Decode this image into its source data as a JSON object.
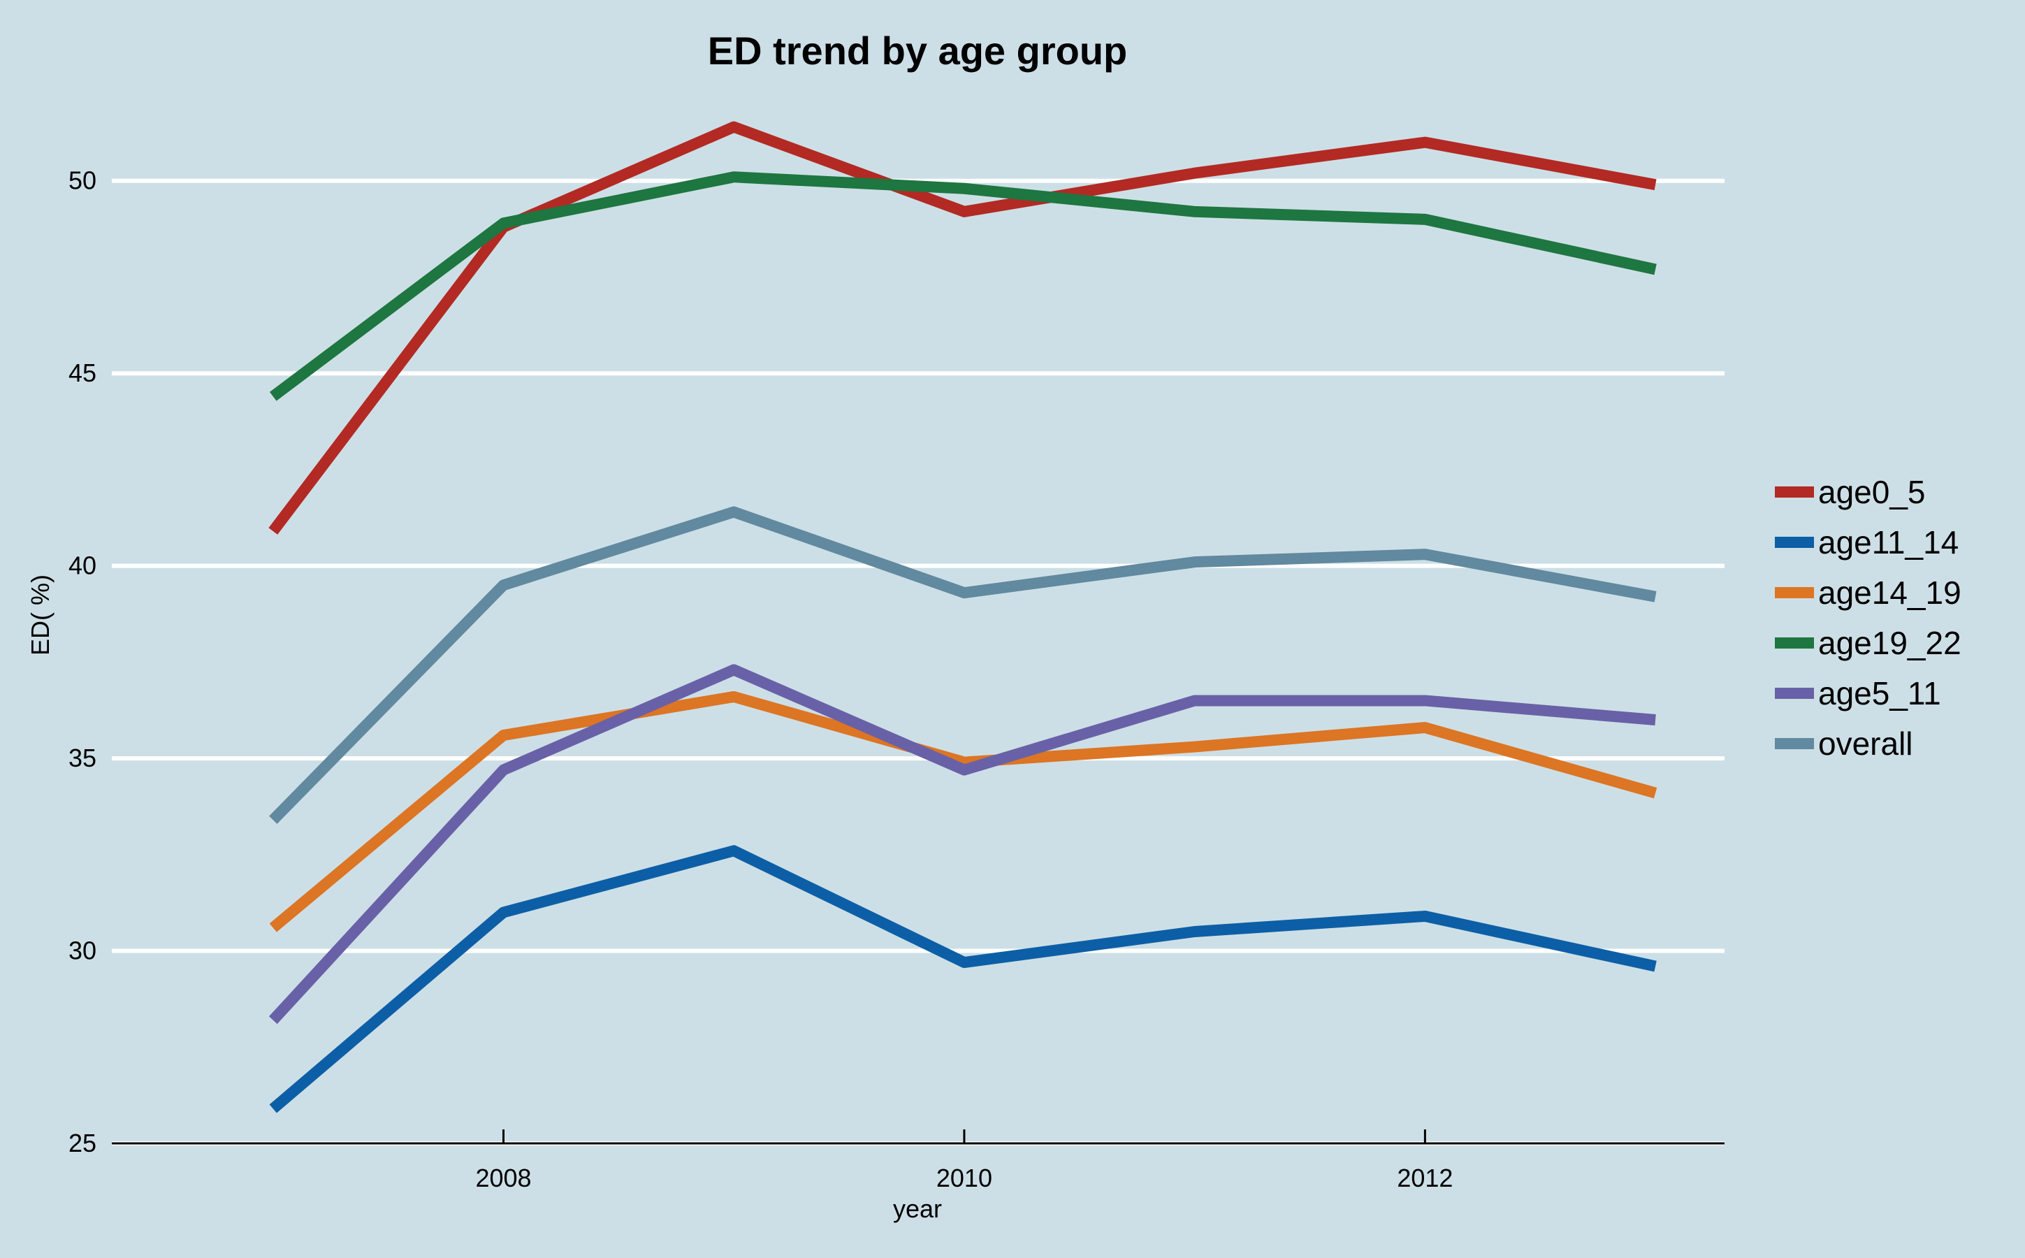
{
  "chart_data": {
    "type": "line",
    "title": "ED trend by age group",
    "xlabel": "year",
    "ylabel": "ED( %)",
    "x": [
      2007,
      2008,
      2009,
      2010,
      2011,
      2012,
      2013
    ],
    "xlim": [
      2006.3,
      2013.3
    ],
    "ylim": [
      25,
      52.7
    ],
    "xticks": [
      2008,
      2010,
      2012
    ],
    "yticks": [
      25,
      30,
      35,
      40,
      45,
      50
    ],
    "xtick_labels": [
      "2008",
      "2010",
      "2012"
    ],
    "ytick_labels": [
      "25",
      "30",
      "35",
      "40",
      "45",
      "50"
    ],
    "grid": "horizontal",
    "legend_position": "right",
    "series": [
      {
        "name": "age0_5",
        "color": "#b22a23",
        "values": [
          40.9,
          48.8,
          51.4,
          49.2,
          50.2,
          51.0,
          49.9
        ]
      },
      {
        "name": "age11_14",
        "color": "#0c5fa6",
        "values": [
          25.9,
          31.0,
          32.6,
          29.7,
          30.5,
          30.9,
          29.6
        ]
      },
      {
        "name": "age14_19",
        "color": "#dc7524",
        "values": [
          30.6,
          35.6,
          36.6,
          34.9,
          35.3,
          35.8,
          34.1
        ]
      },
      {
        "name": "age19_22",
        "color": "#1e7640",
        "values": [
          44.4,
          48.9,
          50.1,
          49.8,
          49.2,
          49.0,
          47.7
        ]
      },
      {
        "name": "age5_11",
        "color": "#6961a7",
        "values": [
          28.2,
          34.7,
          37.3,
          34.7,
          36.5,
          36.5,
          36.0
        ]
      },
      {
        "name": "overall",
        "color": "#6189a0",
        "values": [
          33.4,
          39.5,
          41.4,
          39.3,
          40.1,
          40.3,
          39.2
        ]
      }
    ]
  }
}
